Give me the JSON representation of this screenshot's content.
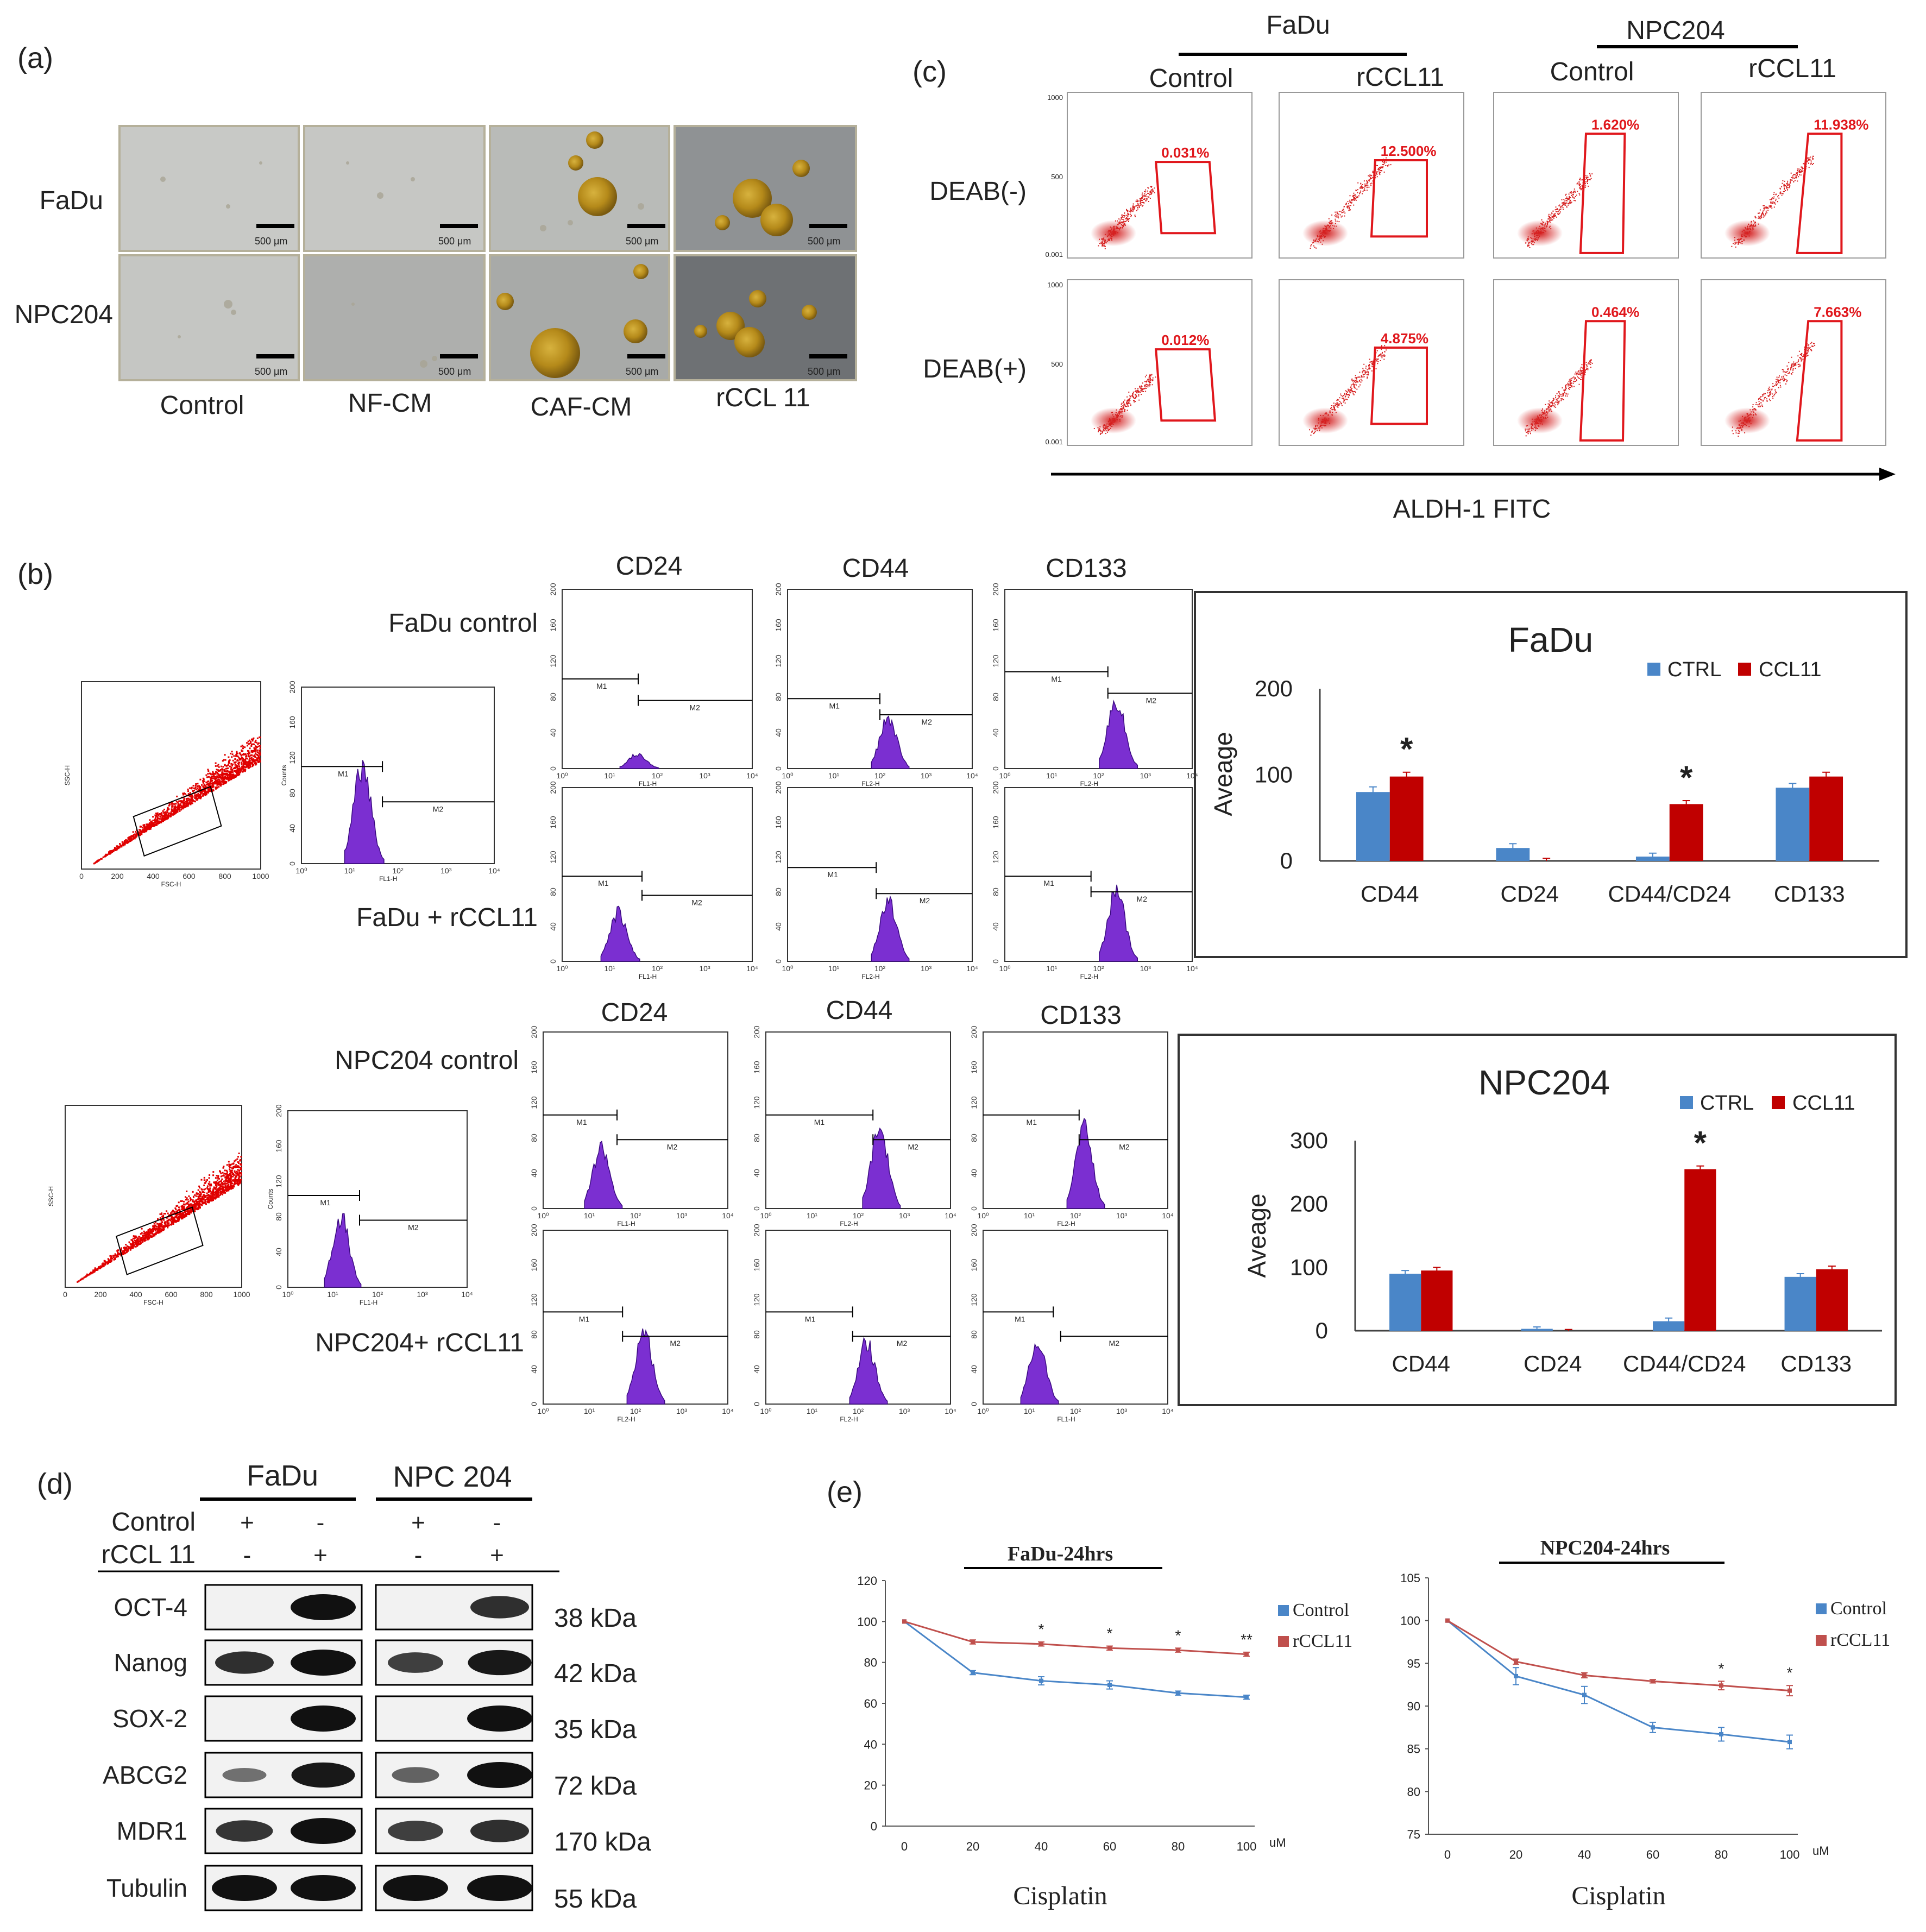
{
  "panels": {
    "a": {
      "label": "(a)",
      "row_labels": [
        "FaDu",
        "NPC204"
      ],
      "col_labels": [
        "Control",
        "NF-CM",
        "CAF-CM",
        "rCCL 11"
      ],
      "scale_bar": "500 μm"
    },
    "c": {
      "label": "(c)",
      "groups": [
        "FaDu",
        "NPC204"
      ],
      "col_labels": [
        "Control",
        "rCCL11",
        "Control",
        "rCCL11"
      ],
      "row_labels": [
        "DEAB(-)",
        "DEAB(+)"
      ],
      "percent_grid": [
        [
          "0.031%",
          "12.500%",
          "1.620%",
          "11.938%"
        ],
        [
          "0.012%",
          "4.875%",
          "0.464%",
          "7.663%"
        ]
      ],
      "x_axis": "ALDH-1 FITC",
      "y_ticks": [
        "1000",
        "500",
        "0.001"
      ]
    },
    "b": {
      "label": "(b)",
      "markers": [
        "CD24",
        "CD44",
        "CD133"
      ],
      "fadu_rows": [
        "FaDu control",
        "FaDu + rCCL11"
      ],
      "npc_rows": [
        "NPC204 control",
        "NPC204+ rCCL11"
      ],
      "gates": [
        "M1",
        "M2"
      ],
      "scatter_x_label": "FSC-H",
      "scatter_y_label": "SSC-H",
      "scatter_x_ticks": [
        "0",
        "200",
        "400",
        "600",
        "800",
        "1000"
      ],
      "hist_x_ticks": [
        "10⁰",
        "10¹",
        "10²",
        "10³",
        "10⁴"
      ],
      "hist_y_ticks": [
        "0",
        "40",
        "80",
        "120",
        "160",
        "200"
      ],
      "hist_x_labels": [
        "FL1-H",
        "FL2-H"
      ],
      "hist_y_label": "Counts"
    },
    "d": {
      "label": "(d)",
      "groups": [
        "FaDu",
        "NPC 204"
      ],
      "row_headers": [
        "Control",
        "rCCL 11"
      ],
      "control_signs": [
        "+",
        "-",
        "+",
        "-"
      ],
      "rccl_signs": [
        "-",
        "+",
        "-",
        "+"
      ],
      "proteins": [
        "OCT-4",
        "Nanog",
        "SOX-2",
        "ABCG2",
        "MDR1",
        "Tubulin"
      ],
      "kda": [
        "38 kDa",
        "42 kDa",
        "35 kDa",
        "72 kDa",
        "170 kDa",
        "55 kDa"
      ]
    },
    "e": {
      "label": "(e)"
    }
  },
  "chart_data": [
    {
      "id": "fadu-bar",
      "type": "bar",
      "title": "FaDu",
      "categories": [
        "CD44",
        "CD24",
        "CD44/CD24",
        "CD133"
      ],
      "series": [
        {
          "name": "CTRL",
          "color": "#4a86c8",
          "values": [
            80,
            15,
            5,
            85
          ],
          "errors": [
            6,
            5,
            4,
            5
          ]
        },
        {
          "name": "CCL11",
          "color": "#c00000",
          "values": [
            98,
            0,
            66,
            98
          ],
          "errors": [
            5,
            3,
            4,
            5
          ]
        }
      ],
      "ylabel": "Aveage",
      "yticks": [
        0,
        100,
        200
      ],
      "ylim": [
        0,
        200
      ],
      "significance": [
        "*",
        "",
        "*",
        ""
      ]
    },
    {
      "id": "npc-bar",
      "type": "bar",
      "title": "NPC204",
      "categories": [
        "CD44",
        "CD24",
        "CD44/CD24",
        "CD133"
      ],
      "series": [
        {
          "name": "CTRL",
          "color": "#4a86c8",
          "values": [
            90,
            3,
            15,
            85
          ],
          "errors": [
            5,
            3,
            5,
            5
          ]
        },
        {
          "name": "CCL11",
          "color": "#c00000",
          "values": [
            95,
            0,
            255,
            97
          ],
          "errors": [
            5,
            2,
            5,
            5
          ]
        }
      ],
      "ylabel": "Aveage",
      "yticks": [
        0,
        100,
        200,
        300
      ],
      "ylim": [
        0,
        300
      ],
      "significance": [
        "",
        "",
        "*",
        ""
      ]
    },
    {
      "id": "fadu-line",
      "type": "line",
      "title": "FaDu-24hrs",
      "x": [
        0,
        20,
        40,
        60,
        80,
        100
      ],
      "series": [
        {
          "name": "Control",
          "color": "#4a86c8",
          "values": [
            100,
            75,
            71,
            69,
            65,
            63
          ],
          "errors": [
            0,
            1,
            2,
            2,
            1,
            1
          ]
        },
        {
          "name": "rCCL11",
          "color": "#c0504d",
          "values": [
            100,
            90,
            89,
            87,
            86,
            84
          ],
          "errors": [
            0,
            1,
            1,
            1,
            1,
            1
          ]
        }
      ],
      "xlabel": "Cisplatin",
      "xunit": "uM",
      "yticks": [
        0,
        20,
        40,
        60,
        80,
        100,
        120
      ],
      "ylim": [
        0,
        120
      ],
      "significance": [
        "",
        "",
        "*",
        "*",
        "*",
        "**"
      ]
    },
    {
      "id": "npc-line",
      "type": "line",
      "title": "NPC204-24hrs",
      "x": [
        0,
        20,
        40,
        60,
        80,
        100
      ],
      "series": [
        {
          "name": "Control",
          "color": "#4a86c8",
          "values": [
            100,
            93.5,
            91.3,
            87.5,
            86.7,
            85.8
          ],
          "errors": [
            0,
            1,
            1,
            0.6,
            0.8,
            0.8
          ]
        },
        {
          "name": "rCCL11",
          "color": "#c0504d",
          "values": [
            100,
            95.2,
            93.6,
            92.9,
            92.4,
            91.8
          ],
          "errors": [
            0,
            0.3,
            0.3,
            0.2,
            0.5,
            0.6
          ]
        }
      ],
      "xlabel": "Cisplatin",
      "xunit": "uM",
      "yticks": [
        75,
        80,
        85,
        90,
        95,
        100,
        105
      ],
      "ylim": [
        75,
        105
      ],
      "significance": [
        "",
        "",
        "",
        "",
        "*",
        "*"
      ]
    }
  ]
}
